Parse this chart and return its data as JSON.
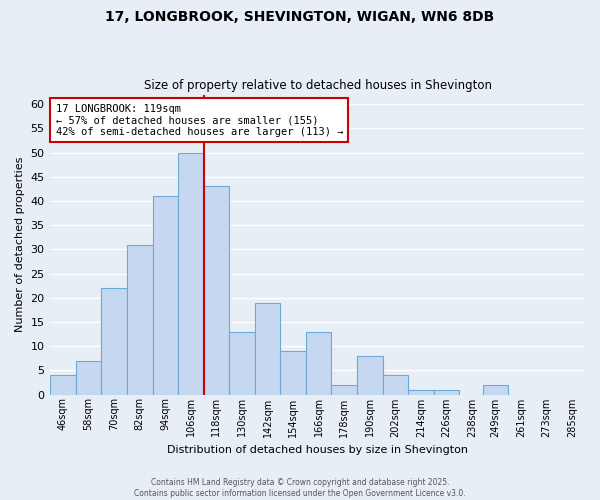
{
  "title1": "17, LONGBROOK, SHEVINGTON, WIGAN, WN6 8DB",
  "title2": "Size of property relative to detached houses in Shevington",
  "xlabel": "Distribution of detached houses by size in Shevington",
  "ylabel": "Number of detached properties",
  "bin_labels": [
    "46sqm",
    "58sqm",
    "70sqm",
    "82sqm",
    "94sqm",
    "106sqm",
    "118sqm",
    "130sqm",
    "142sqm",
    "154sqm",
    "166sqm",
    "178sqm",
    "190sqm",
    "202sqm",
    "214sqm",
    "226sqm",
    "238sqm",
    "249sqm",
    "261sqm",
    "273sqm",
    "285sqm"
  ],
  "bin_left_edges": [
    46,
    58,
    70,
    82,
    94,
    106,
    118,
    130,
    142,
    154,
    166,
    178,
    190,
    202,
    214,
    226,
    238,
    249,
    261,
    273,
    285
  ],
  "bin_width": 12,
  "values": [
    4,
    7,
    22,
    31,
    41,
    50,
    43,
    13,
    19,
    9,
    13,
    2,
    8,
    4,
    1,
    1,
    0,
    2,
    0,
    0,
    0
  ],
  "bar_color": "#c5d8f0",
  "bar_edge_color": "#6aaad4",
  "bg_color": "#e8eef6",
  "grid_color": "#ffffff",
  "vline_x": 118,
  "vline_color": "#cc0000",
  "annotation_line1": "17 LONGBROOK: 119sqm",
  "annotation_line2": "← 57% of detached houses are smaller (155)",
  "annotation_line3": "42% of semi-detached houses are larger (113) →",
  "annotation_box_color": "#ffffff",
  "annotation_box_edge_color": "#cc0000",
  "ylim": [
    0,
    62
  ],
  "yticks": [
    0,
    5,
    10,
    15,
    20,
    25,
    30,
    35,
    40,
    45,
    50,
    55,
    60
  ],
  "footnote_line1": "Contains HM Land Registry data © Crown copyright and database right 2025.",
  "footnote_line2": "Contains public sector information licensed under the Open Government Licence v3.0."
}
